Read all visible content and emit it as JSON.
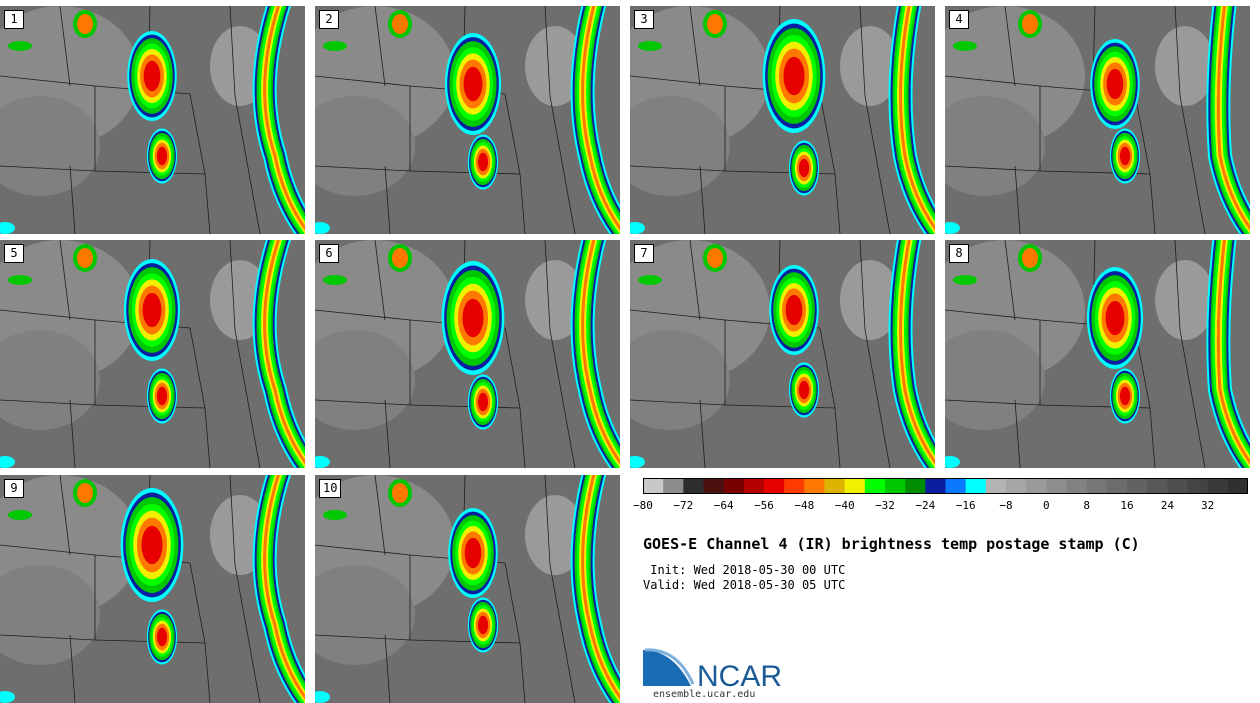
{
  "panels": [
    {
      "label": "1"
    },
    {
      "label": "2"
    },
    {
      "label": "3"
    },
    {
      "label": "4"
    },
    {
      "label": "5"
    },
    {
      "label": "6"
    },
    {
      "label": "7"
    },
    {
      "label": "8"
    },
    {
      "label": "9"
    },
    {
      "label": "10"
    }
  ],
  "colorbar": {
    "min": -80,
    "max": 40,
    "step": 4,
    "tick_labels": [
      "-80",
      "-72",
      "-64",
      "-56",
      "-48",
      "-40",
      "-32",
      "-24",
      "-16",
      "-8",
      "0",
      "8",
      "16",
      "24",
      "32"
    ],
    "colors": [
      "#c8c8c8",
      "#8c8c8c",
      "#2d2d2d",
      "#4a1010",
      "#780000",
      "#b40000",
      "#e60000",
      "#ff3c00",
      "#ff7800",
      "#dcb400",
      "#f0f000",
      "#00ff00",
      "#00c800",
      "#008c00",
      "#0a1ea0",
      "#0a78ff",
      "#00ffff",
      "#b4b4b4",
      "#a6a6a6",
      "#9a9a9a",
      "#8e8e8e",
      "#828282",
      "#767676",
      "#6c6c6c",
      "#626262",
      "#585858",
      "#4e4e4e",
      "#444444",
      "#3a3a3a",
      "#303030"
    ]
  },
  "title": "GOES-E Channel 4 (IR) brightness temp postage stamp (C)",
  "init": " Init: Wed 2018-05-30 00 UTC",
  "valid": "Valid: Wed 2018-05-30 05 UTC",
  "logo": {
    "text": "NCAR",
    "url": "ensemble.ucar.edu",
    "color": "#1a5a96"
  }
}
